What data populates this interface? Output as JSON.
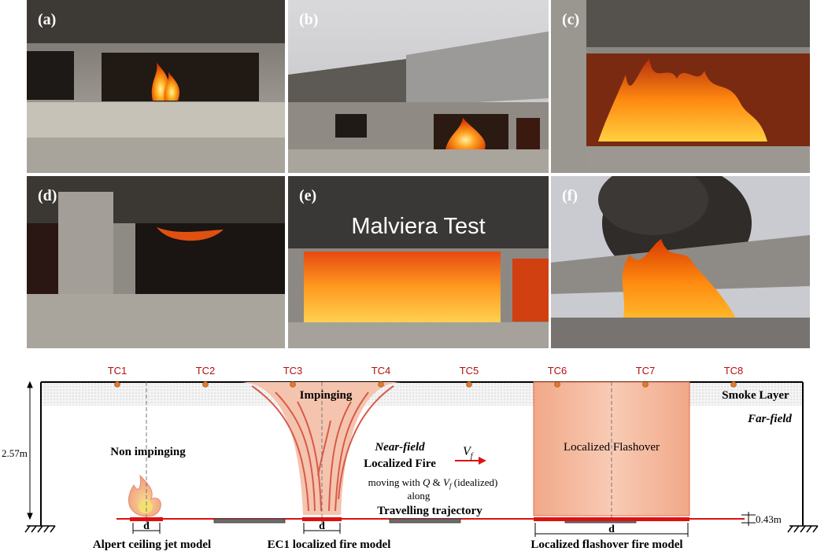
{
  "photos": [
    {
      "label": "(a)"
    },
    {
      "label": "(b)"
    },
    {
      "label": "(c)"
    },
    {
      "label": "(d)"
    },
    {
      "label": "(e)",
      "overlay": "Malviera Test"
    },
    {
      "label": "(f)"
    }
  ],
  "diagram": {
    "thermocouples": [
      "TC1",
      "TC2",
      "TC3",
      "TC4",
      "TC5",
      "TC6",
      "TC7",
      "TC8"
    ],
    "smoke_layer": "Smoke Layer",
    "far_field": "Far-field",
    "height": "2.57m",
    "offset": "0.43m",
    "non_impinging": "Non impinging",
    "impinging": "Impinging",
    "near_field": "Near-field",
    "localized_fire": "Localized Fire",
    "moving_with": "moving with",
    "q_symbol": "Q",
    "amp": "&",
    "v_base": "V",
    "v_sub": "f",
    "idealized": "(idealized)",
    "along": "along",
    "trajectory": "Travelling trajectory",
    "localized_flashover": "Localized Flashover",
    "d": "d",
    "model_alpert": "Alpert ceiling jet model",
    "model_ec1": "EC1 localized fire model",
    "model_flashover": "Localized flashover fire model",
    "colors": {
      "floor": "#dd1111",
      "tc_label": "#b01010",
      "tc_dot": "#e07a30",
      "flame": "#f3b79a"
    }
  }
}
